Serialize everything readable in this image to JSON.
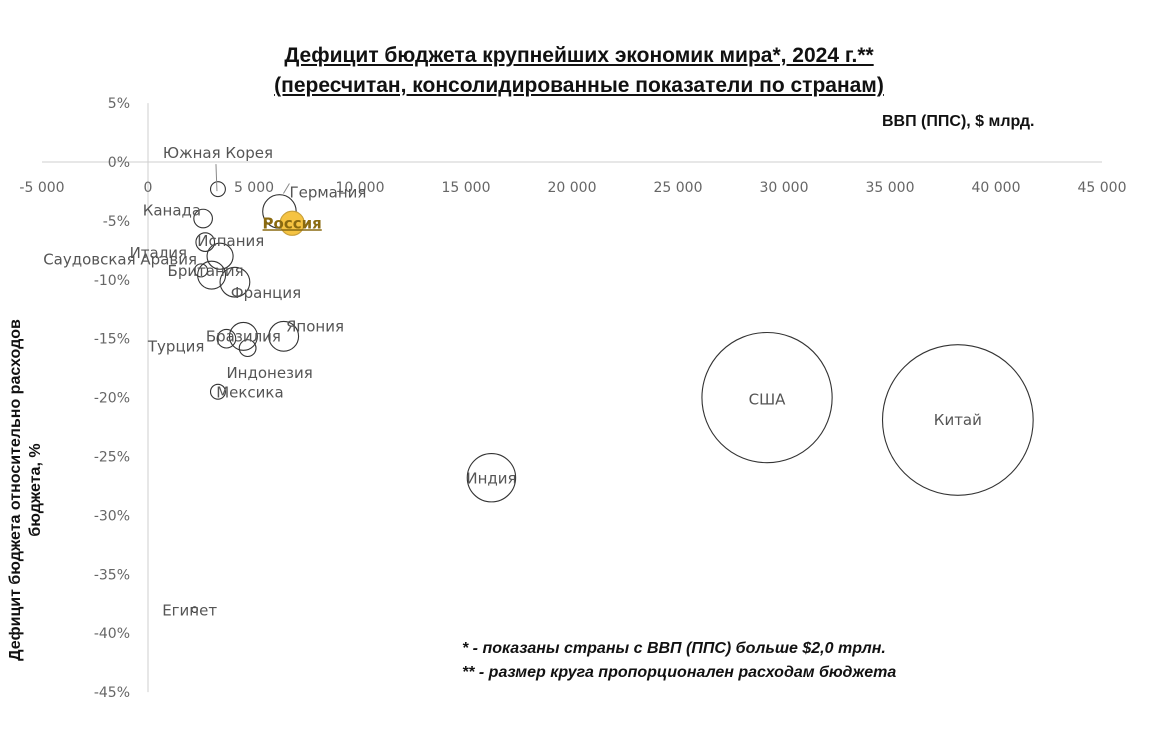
{
  "chart_data": {
    "type": "bubble",
    "title": "Дефицит бюджета крупнейших экономик мира*, 2024 г.**",
    "subtitle": "(пересчитан, консолидированные показатели по странам)",
    "xlabel": "ВВП (ППС), $ млрд.",
    "ylabel_line1": "Дефицит бюджета относительно расходов",
    "ylabel_line2": "бюджета, %",
    "xlim": [
      -5000,
      45000
    ],
    "ylim": [
      -45,
      5
    ],
    "x_ticks": [
      -5000,
      0,
      5000,
      10000,
      15000,
      20000,
      25000,
      30000,
      35000,
      40000,
      45000
    ],
    "x_tick_labels": [
      "-5 000",
      "0",
      "5 000",
      "10 000",
      "15 000",
      "20 000",
      "25 000",
      "30 000",
      "35 000",
      "40 000",
      "45 000"
    ],
    "y_ticks": [
      5,
      0,
      -5,
      -10,
      -15,
      -20,
      -25,
      -30,
      -35,
      -40,
      -45
    ],
    "y_tick_labels": [
      "5%",
      "0%",
      "-5%",
      "-10%",
      "-15%",
      "-20%",
      "-25%",
      "-30%",
      "-35%",
      "-40%",
      "-45%"
    ],
    "highlight_color": "#F5C342",
    "points": [
      {
        "name": "Южная Корея",
        "x": 3300,
        "y": -2.3,
        "size": 0.8
      },
      {
        "name": "Германия",
        "x": 6200,
        "y": -4.2,
        "size": 1.8
      },
      {
        "name": "Россия",
        "x": 6800,
        "y": -5.2,
        "size": 1.3,
        "highlight": true
      },
      {
        "name": "Канада",
        "x": 2600,
        "y": -4.8,
        "size": 1.0
      },
      {
        "name": "Испания",
        "x": 2700,
        "y": -6.8,
        "size": 1.0
      },
      {
        "name": "Италия",
        "x": 3400,
        "y": -8.0,
        "size": 1.4
      },
      {
        "name": "Саудовская Аравия",
        "x": 2500,
        "y": -9.2,
        "size": 0.7
      },
      {
        "name": "Британия",
        "x": 3000,
        "y": -9.6,
        "size": 1.5
      },
      {
        "name": "Франция",
        "x": 4100,
        "y": -10.2,
        "size": 1.6
      },
      {
        "name": "Япония",
        "x": 6400,
        "y": -14.8,
        "size": 1.6
      },
      {
        "name": "Бразилия",
        "x": 4500,
        "y": -14.8,
        "size": 1.5
      },
      {
        "name": "Турция",
        "x": 3700,
        "y": -15.0,
        "size": 1.0
      },
      {
        "name": "Индонезия",
        "x": 4700,
        "y": -15.8,
        "size": 0.9
      },
      {
        "name": "Мексика",
        "x": 3300,
        "y": -19.5,
        "size": 0.8
      },
      {
        "name": "США",
        "x": 29200,
        "y": -20.0,
        "size": 7.0
      },
      {
        "name": "Китай",
        "x": 38200,
        "y": -21.9,
        "size": 8.1
      },
      {
        "name": "Индия",
        "x": 16200,
        "y": -26.8,
        "size": 2.6
      },
      {
        "name": "Египет",
        "x": 2200,
        "y": -38.0,
        "size": 0.3
      }
    ],
    "notes": [
      "* - показаны страны с ВВП (ППС) больше $2,0 трлн.",
      "** - размер круга пропорционален расходам бюджета"
    ]
  }
}
